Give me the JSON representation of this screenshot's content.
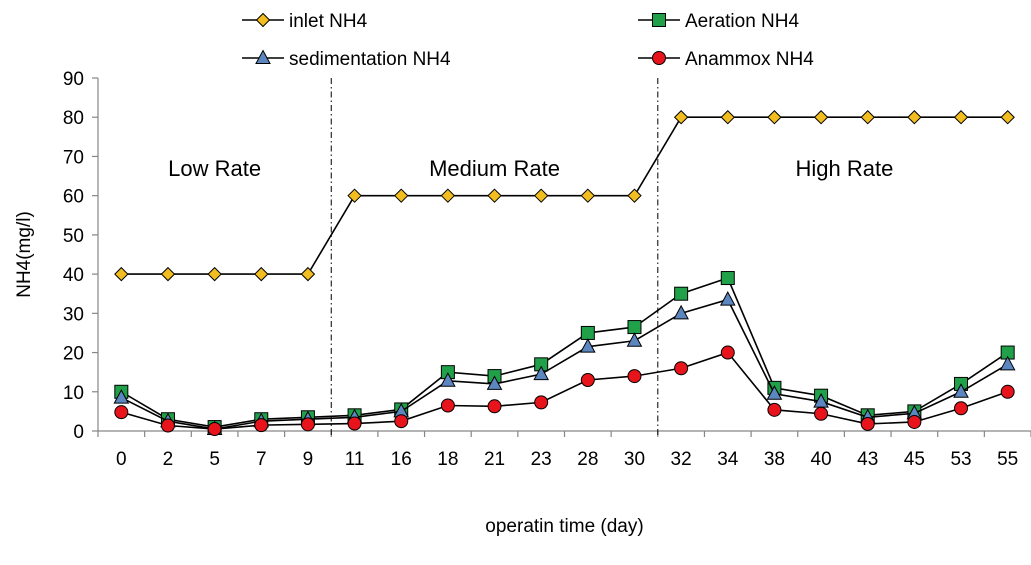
{
  "chart_data": {
    "type": "line",
    "xlabel": "operatin time (day)",
    "ylabel": "NH4(mg/l)",
    "categories": [
      "0",
      "2",
      "5",
      "7",
      "9",
      "11",
      "16",
      "18",
      "21",
      "23",
      "28",
      "30",
      "32",
      "34",
      "38",
      "40",
      "43",
      "45",
      "53",
      "55"
    ],
    "ylim": [
      0,
      90
    ],
    "yticks": [
      0,
      10,
      20,
      30,
      40,
      50,
      60,
      70,
      80,
      90
    ],
    "grid": false,
    "legend_position": "top",
    "series": [
      {
        "name": "inlet NH4",
        "marker": "diamond",
        "color": "#F2BE1F",
        "values": [
          40,
          40,
          40,
          40,
          40,
          60,
          60,
          60,
          60,
          60,
          60,
          60,
          80,
          80,
          80,
          80,
          80,
          80,
          80,
          80
        ]
      },
      {
        "name": "Aeration NH4",
        "marker": "square",
        "color": "#21A04A",
        "values": [
          10,
          3,
          1,
          3,
          3.5,
          4,
          5.5,
          15,
          14,
          17,
          25,
          26.5,
          35,
          39,
          11,
          9,
          4,
          5,
          12,
          20
        ]
      },
      {
        "name": "sedimentation NH4",
        "marker": "triangle",
        "color": "#5B86C0",
        "values": [
          8.5,
          2.5,
          0.5,
          2.5,
          3,
          3.5,
          5,
          12.8,
          12,
          14.5,
          21.5,
          23,
          30,
          33.5,
          9.5,
          7.5,
          3.5,
          4.5,
          10,
          17
        ]
      },
      {
        "name": "Anammox NH4",
        "marker": "circle",
        "color": "#E8141B",
        "values": [
          4.8,
          1.4,
          0.5,
          1.5,
          1.7,
          1.9,
          2.5,
          6.5,
          6.3,
          7.3,
          13,
          14,
          16,
          20,
          5.4,
          4.4,
          1.8,
          2.3,
          5.8,
          10
        ]
      }
    ],
    "dividers_after_index": [
      4,
      11
    ],
    "regions": [
      {
        "label": "Low Rate",
        "from_index": 0,
        "to_index": 4
      },
      {
        "label": "Medium Rate",
        "from_index": 5,
        "to_index": 11
      },
      {
        "label": "High Rate",
        "from_index": 12,
        "to_index": 19
      }
    ]
  }
}
